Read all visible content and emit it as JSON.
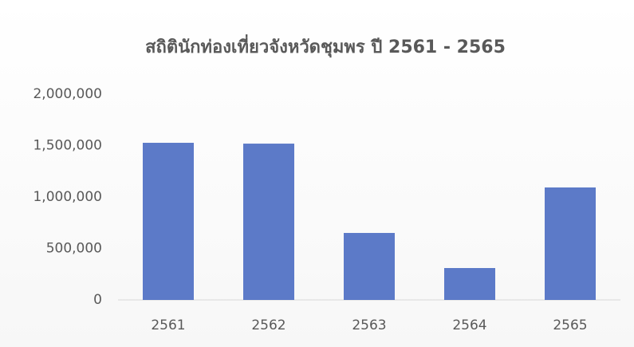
{
  "chart_data": {
    "type": "bar",
    "title": "สถิตินักท่องเที่ยวจังหวัดชุมพร ปี  2561 - 2565",
    "categories": [
      "2561",
      "2562",
      "2563",
      "2564",
      "2565"
    ],
    "values": [
      1527000,
      1519000,
      651000,
      310000,
      1093000
    ],
    "color": "#4a6cc2",
    "ylim": [
      0,
      2000000
    ],
    "yticks": [
      0,
      {
        "value": 500000,
        "label": "500,000"
      },
      {
        "value": 1000000,
        "label": "1,000,000"
      },
      {
        "value": 1500000,
        "label": "1,500,000"
      },
      {
        "value": 2000000,
        "label": "2,000,000"
      }
    ],
    "grid": false
  }
}
